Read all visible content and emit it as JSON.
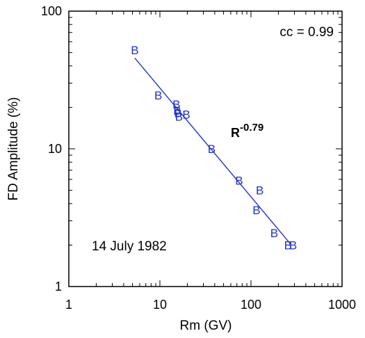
{
  "chart_data": {
    "type": "scatter",
    "title": "",
    "xlabel": "Rm (GV)",
    "ylabel": "FD Amplitude (%)",
    "x_scale": "log",
    "y_scale": "log",
    "xlim": [
      1,
      1000
    ],
    "ylim": [
      1,
      100
    ],
    "x_ticks": [
      "1",
      "10",
      "100",
      "1000"
    ],
    "y_ticks": [
      "1",
      "10",
      "100"
    ],
    "grid": false,
    "marker_label": "B",
    "series_color": "#2233cc",
    "points": [
      {
        "x": 5.3,
        "y": 52
      },
      {
        "x": 9.6,
        "y": 24.5
      },
      {
        "x": 15.2,
        "y": 21
      },
      {
        "x": 15.5,
        "y": 19
      },
      {
        "x": 15.8,
        "y": 18.2
      },
      {
        "x": 16.2,
        "y": 17.2
      },
      {
        "x": 19.5,
        "y": 17.8
      },
      {
        "x": 37,
        "y": 10
      },
      {
        "x": 74,
        "y": 5.9
      },
      {
        "x": 125,
        "y": 5
      },
      {
        "x": 115,
        "y": 3.6
      },
      {
        "x": 180,
        "y": 2.45
      },
      {
        "x": 255,
        "y": 2.0
      },
      {
        "x": 290,
        "y": 2.0
      }
    ],
    "fit": {
      "x_range": [
        5.3,
        270
      ],
      "exponent": -0.79,
      "base_label": "R",
      "exponent_label": "-0.79"
    },
    "annotations": {
      "correlation": "cc = 0.99",
      "event": "14 July 1982"
    }
  }
}
